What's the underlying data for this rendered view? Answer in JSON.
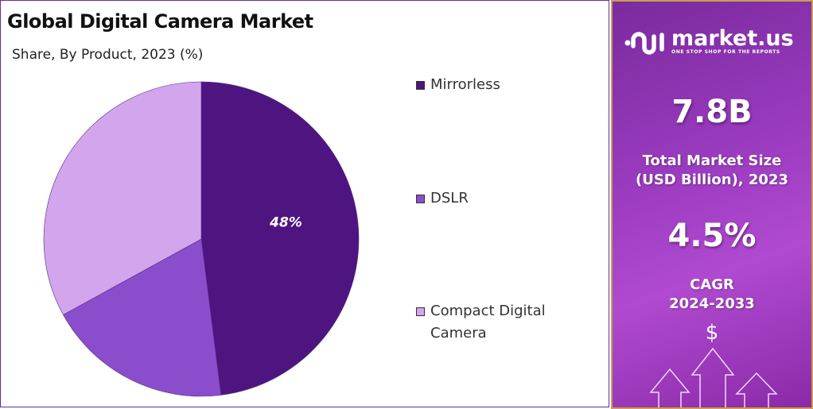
{
  "chart_data": {
    "type": "pie",
    "title": "Global Digital Camera Market",
    "subtitle": "Share, By Product, 2023 (%)",
    "categories": [
      "Mirrorless",
      "DSLR",
      "Compact Digital Camera"
    ],
    "values": [
      48,
      19,
      33
    ],
    "data_labels": [
      "48%",
      "",
      ""
    ],
    "colors": [
      "#4e1580",
      "#8a4ecc",
      "#d2a5ec"
    ],
    "legend_placement": "right"
  },
  "legend": [
    "Mirrorless",
    "DSLR",
    "Compact Digital\nCamera"
  ],
  "sidebar": {
    "brand": "market.us",
    "tagline": "ONE STOP SHOP FOR THE REPORTS",
    "market_size": "7.8B",
    "market_size_label_1": "Total Market Size",
    "market_size_label_2": "(USD Billion), 2023",
    "cagr": "4.5%",
    "cagr_label_1": "CAGR",
    "cagr_label_2": "2024-2033",
    "dollar": "$"
  }
}
